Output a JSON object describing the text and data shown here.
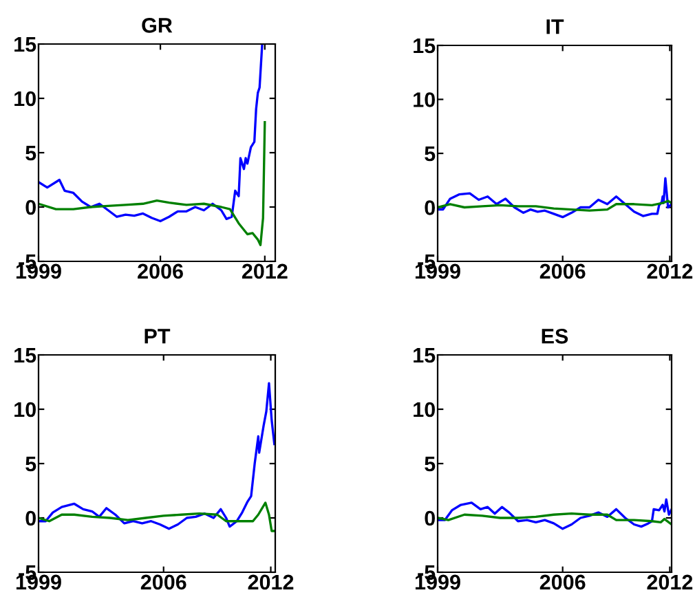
{
  "chart_data": [
    {
      "type": "line",
      "title": "GR",
      "xlim": [
        1999,
        2012.6
      ],
      "xticks": [
        1999,
        2006,
        2012
      ],
      "ylim": [
        -5,
        15
      ],
      "yticks": [
        -5,
        0,
        5,
        10,
        15
      ],
      "series": [
        {
          "color": "#0000ff",
          "x": [
            1999,
            1999.5,
            2000.2,
            2000.5,
            2001,
            2001.5,
            2002,
            2002.5,
            2003,
            2003.5,
            2004,
            2004.5,
            2005,
            2005.5,
            2006,
            2006.5,
            2007,
            2007.5,
            2008,
            2008.5,
            2009,
            2009.5,
            2009.8,
            2010.1,
            2010.3,
            2010.5,
            2010.6,
            2010.8,
            2010.9,
            2011.0,
            2011.2,
            2011.4,
            2011.5,
            2011.6,
            2011.7,
            2011.85
          ],
          "values": [
            2.3,
            1.8,
            2.5,
            1.5,
            1.3,
            0.5,
            0.0,
            0.3,
            -0.3,
            -0.9,
            -0.7,
            -0.8,
            -0.6,
            -1.0,
            -1.3,
            -0.9,
            -0.4,
            -0.4,
            0.0,
            -0.3,
            0.3,
            -0.3,
            -1.1,
            -0.9,
            1.5,
            1.0,
            4.5,
            3.5,
            4.5,
            4.0,
            5.5,
            6.0,
            9,
            10.5,
            11,
            15
          ]
        },
        {
          "color": "#008000",
          "x": [
            1999,
            2000,
            2001,
            2002,
            2003,
            2004,
            2005,
            2005.8,
            2006.5,
            2007.5,
            2008.5,
            2009.5,
            2010,
            2010.5,
            2011,
            2011.3,
            2011.6,
            2011.75,
            2011.9,
            2012.0
          ],
          "values": [
            0.3,
            -0.2,
            -0.2,
            0.0,
            0.1,
            0.2,
            0.3,
            0.6,
            0.4,
            0.2,
            0.3,
            0.0,
            -0.2,
            -1.5,
            -2.5,
            -2.4,
            -3.0,
            -3.5,
            -1.0,
            7.8
          ]
        }
      ]
    },
    {
      "type": "line",
      "title": "IT",
      "xlim": [
        1999,
        2012.1
      ],
      "xticks": [
        1999,
        2006,
        2012
      ],
      "ylim": [
        -5,
        15
      ],
      "yticks": [
        -5,
        0,
        5,
        10,
        15
      ],
      "series": [
        {
          "color": "#0000ff",
          "x": [
            1999,
            1999.3,
            1999.7,
            2000.2,
            2000.8,
            2001.3,
            2001.8,
            2002.3,
            2002.8,
            2003.3,
            2003.8,
            2004.2,
            2004.6,
            2005,
            2005.5,
            2006,
            2006.5,
            2007,
            2007.5,
            2008,
            2008.5,
            2009,
            2009.5,
            2010,
            2010.5,
            2011,
            2011.3,
            2011.4,
            2011.55,
            2011.6,
            2011.65,
            2011.75,
            2011.9,
            2012.1
          ],
          "values": [
            -0.2,
            -0.2,
            0.8,
            1.2,
            1.3,
            0.7,
            1.0,
            0.3,
            0.8,
            0.0,
            -0.5,
            -0.2,
            -0.4,
            -0.3,
            -0.6,
            -0.9,
            -0.5,
            0.0,
            0.0,
            0.7,
            0.3,
            1.0,
            0.3,
            -0.4,
            -0.8,
            -0.6,
            -0.6,
            0.2,
            0.5,
            1.0,
            0.4,
            2.7,
            0.0,
            0.3
          ]
        },
        {
          "color": "#008000",
          "x": [
            1999,
            1999.7,
            2000.5,
            2001.5,
            2002.5,
            2003.5,
            2004.5,
            2005.5,
            2006.5,
            2007.5,
            2008.5,
            2009.0,
            2010,
            2011,
            2011.6,
            2011.9,
            2012.1
          ],
          "values": [
            0.0,
            0.3,
            0.0,
            0.1,
            0.2,
            0.1,
            0.1,
            -0.1,
            -0.2,
            -0.3,
            -0.2,
            0.3,
            0.3,
            0.2,
            0.4,
            0.6,
            0.4
          ]
        }
      ]
    },
    {
      "type": "line",
      "title": "PT",
      "xlim": [
        1999,
        2012.25
      ],
      "xticks": [
        1999,
        2006,
        2012
      ],
      "ylim": [
        -5,
        15
      ],
      "yticks": [
        -5,
        0,
        5,
        10,
        15
      ],
      "series": [
        {
          "color": "#0000ff",
          "x": [
            1999,
            1999.4,
            1999.8,
            2000.3,
            2001,
            2001.5,
            2002,
            2002.4,
            2002.8,
            2003.3,
            2003.8,
            2004.3,
            2004.8,
            2005.3,
            2005.8,
            2006.3,
            2006.8,
            2007.3,
            2007.8,
            2008.3,
            2008.8,
            2009.2,
            2009.5,
            2009.7,
            2010.1,
            2010.4,
            2010.7,
            2010.9,
            2011.1,
            2011.3,
            2011.35,
            2011.6,
            2011.75,
            2011.9,
            2012.05,
            2012.2
          ],
          "values": [
            -0.3,
            -0.3,
            0.5,
            1.0,
            1.3,
            0.8,
            0.6,
            0.1,
            0.9,
            0.3,
            -0.5,
            -0.3,
            -0.5,
            -0.3,
            -0.6,
            -1.0,
            -0.6,
            0.0,
            0.1,
            0.4,
            0.0,
            0.8,
            0.0,
            -0.8,
            -0.3,
            0.5,
            1.5,
            2.0,
            5.0,
            7.5,
            6.0,
            8.5,
            9.8,
            12.4,
            9.0,
            6.8
          ]
        },
        {
          "color": "#008000",
          "x": [
            1999,
            1999.6,
            2000.3,
            2001,
            2002,
            2003,
            2004,
            2005,
            2006,
            2007,
            2008,
            2009,
            2009.5,
            2010.5,
            2011,
            2011.3,
            2011.7,
            2011.9,
            2012.05,
            2012.2
          ],
          "values": [
            0.0,
            -0.3,
            0.3,
            0.3,
            0.1,
            0.0,
            -0.2,
            0.0,
            0.2,
            0.3,
            0.4,
            0.3,
            -0.3,
            -0.3,
            -0.3,
            0.3,
            1.4,
            0.3,
            -1.2,
            -1.2
          ]
        }
      ]
    },
    {
      "type": "line",
      "title": "ES",
      "xlim": [
        1999,
        2012.1
      ],
      "xticks": [
        1999,
        2006,
        2012
      ],
      "ylim": [
        -5,
        15
      ],
      "yticks": [
        -5,
        0,
        5,
        10,
        15
      ],
      "series": [
        {
          "color": "#0000ff",
          "x": [
            1999,
            1999.4,
            1999.8,
            2000.3,
            2000.9,
            2001.4,
            2001.8,
            2002.2,
            2002.6,
            2003.0,
            2003.5,
            2004.0,
            2004.5,
            2005,
            2005.5,
            2006.0,
            2006.5,
            2007,
            2007.5,
            2008,
            2008.5,
            2009.0,
            2009.5,
            2010,
            2010.4,
            2010.8,
            2011.0,
            2011.1,
            2011.4,
            2011.6,
            2011.7,
            2011.8,
            2011.95,
            2012.1
          ],
          "values": [
            -0.2,
            -0.2,
            0.7,
            1.2,
            1.4,
            0.8,
            1.0,
            0.4,
            1.0,
            0.5,
            -0.3,
            -0.2,
            -0.4,
            -0.2,
            -0.5,
            -1.0,
            -0.6,
            0.0,
            0.2,
            0.5,
            0.1,
            0.8,
            0.0,
            -0.6,
            -0.8,
            -0.5,
            -0.3,
            0.8,
            0.7,
            1.2,
            0.6,
            1.7,
            0.3,
            0.8
          ]
        },
        {
          "color": "#008000",
          "x": [
            1999,
            1999.6,
            2000.5,
            2001.5,
            2002.5,
            2003.5,
            2004.5,
            2005.5,
            2006.5,
            2007.5,
            2008.5,
            2009,
            2010,
            2011,
            2011.5,
            2011.7,
            2012.1
          ],
          "values": [
            0.0,
            -0.2,
            0.3,
            0.2,
            0.0,
            0.0,
            0.1,
            0.3,
            0.4,
            0.3,
            0.3,
            -0.2,
            -0.2,
            -0.3,
            -0.4,
            -0.1,
            -0.6
          ]
        }
      ]
    }
  ]
}
